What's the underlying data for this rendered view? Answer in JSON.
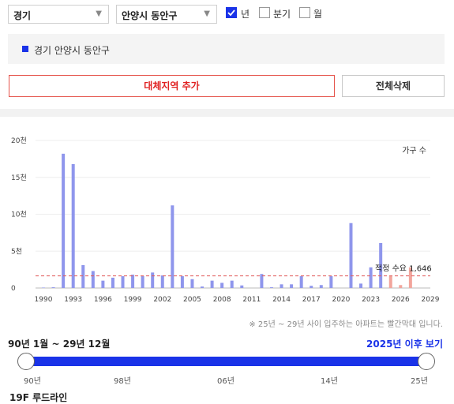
{
  "filters": {
    "province": "경기",
    "city": "안양시 동안구",
    "periods": [
      {
        "label": "년",
        "checked": true
      },
      {
        "label": "분기",
        "checked": false
      },
      {
        "label": "월",
        "checked": false
      }
    ]
  },
  "selected_region": "경기 안양시 동안구",
  "buttons": {
    "add_region": "대체지역 추가",
    "delete_all": "전체삭제"
  },
  "colors": {
    "accent": "#1a33e8",
    "bar_past": "#8f96ec",
    "bar_future": "#f2a59c",
    "demand_line": "#e05a5a",
    "add_button": "#e02020"
  },
  "chart_data": {
    "type": "bar",
    "legend": "가구 수",
    "y_ticks": [
      "20천",
      "15천",
      "10천",
      "5천",
      "0"
    ],
    "ylim": [
      0,
      20000
    ],
    "x_tick_labels": [
      "1990",
      "1993",
      "1996",
      "1999",
      "2002",
      "2005",
      "2008",
      "2011",
      "2014",
      "2017",
      "2020",
      "2023",
      "2026",
      "2029"
    ],
    "x_range": [
      1990,
      2029
    ],
    "demand_label": "적정 수요 1,646",
    "demand_value": 1646,
    "future_from": 2025,
    "bars": [
      {
        "year": 1990,
        "value": 60
      },
      {
        "year": 1991,
        "value": 100
      },
      {
        "year": 1992,
        "value": 18200
      },
      {
        "year": 1993,
        "value": 16800
      },
      {
        "year": 1994,
        "value": 3100
      },
      {
        "year": 1995,
        "value": 2300
      },
      {
        "year": 1996,
        "value": 1000
      },
      {
        "year": 1997,
        "value": 1400
      },
      {
        "year": 1998,
        "value": 1600
      },
      {
        "year": 1999,
        "value": 1800
      },
      {
        "year": 2000,
        "value": 1600
      },
      {
        "year": 2001,
        "value": 2100
      },
      {
        "year": 2002,
        "value": 1700
      },
      {
        "year": 2003,
        "value": 11200
      },
      {
        "year": 2004,
        "value": 1600
      },
      {
        "year": 2005,
        "value": 1200
      },
      {
        "year": 2006,
        "value": 200
      },
      {
        "year": 2007,
        "value": 1000
      },
      {
        "year": 2008,
        "value": 700
      },
      {
        "year": 2009,
        "value": 1000
      },
      {
        "year": 2010,
        "value": 350
      },
      {
        "year": 2011,
        "value": 0
      },
      {
        "year": 2012,
        "value": 1900
      },
      {
        "year": 2013,
        "value": 100
      },
      {
        "year": 2014,
        "value": 500
      },
      {
        "year": 2015,
        "value": 500
      },
      {
        "year": 2016,
        "value": 1600
      },
      {
        "year": 2017,
        "value": 300
      },
      {
        "year": 2018,
        "value": 400
      },
      {
        "year": 2019,
        "value": 1600
      },
      {
        "year": 2020,
        "value": 0
      },
      {
        "year": 2021,
        "value": 8800
      },
      {
        "year": 2022,
        "value": 600
      },
      {
        "year": 2023,
        "value": 2800
      },
      {
        "year": 2024,
        "value": 6100
      },
      {
        "year": 2025,
        "value": 1600
      },
      {
        "year": 2026,
        "value": 400
      },
      {
        "year": 2027,
        "value": 2800
      }
    ]
  },
  "chart_note": "※ 25년 ~ 29년 사이 입주하는 아파트는 빨간막대 입니다.",
  "range_label": "90년 1월 ~ 29년 12월",
  "after_link": "2025년 이후 보기",
  "slider_ticks": [
    "90년",
    "98년",
    "06년",
    "14년",
    "25년"
  ],
  "bottom_partial": "19F 루드라인"
}
